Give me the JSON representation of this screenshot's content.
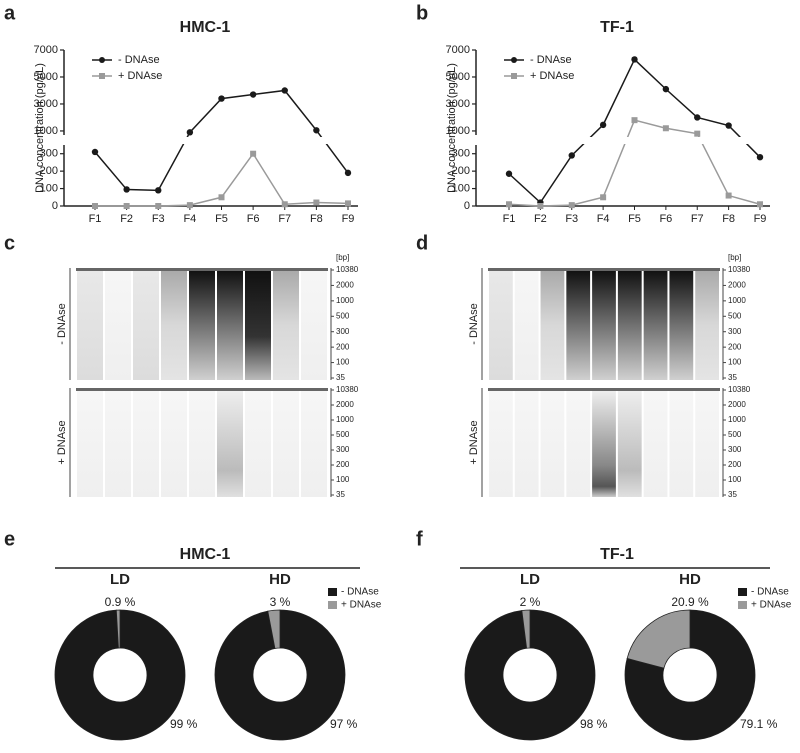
{
  "figure": {
    "panels": [
      "a",
      "b",
      "c",
      "d",
      "e",
      "f"
    ],
    "groups": [
      {
        "title": "HMC-1"
      },
      {
        "title": "TF-1"
      }
    ]
  },
  "gels": [
    {
      "unit": "[bp]",
      "rows": [
        "- DNAse",
        "+ DNAse"
      ],
      "sizes": [
        10380,
        2000,
        1000,
        500,
        300,
        200,
        100,
        35
      ]
    },
    {
      "unit": "[bp]",
      "rows": [
        "- DNAse",
        "+ DNAse"
      ],
      "sizes": [
        10380,
        2000,
        1000,
        500,
        300,
        200,
        100,
        35
      ]
    }
  ],
  "chart_data": [
    {
      "type": "line",
      "title": "HMC-1",
      "y_label": "DNA concentration (pg/μL)",
      "categories": [
        "F1",
        "F2",
        "F3",
        "F4",
        "F5",
        "F6",
        "F7",
        "F8",
        "F9"
      ],
      "series": [
        {
          "name": "- DNAse",
          "color": "#1a1a1a",
          "marker": "circle",
          "values": [
            310,
            95,
            90,
            900,
            3400,
            3700,
            4000,
            1050,
            190
          ]
        },
        {
          "name": "+ DNAse",
          "color": "#9a9a9a",
          "marker": "square",
          "values": [
            0,
            0,
            0,
            5,
            50,
            300,
            10,
            20,
            15
          ]
        }
      ],
      "segments": [
        {
          "ylim": [
            0,
            350
          ],
          "yticks": [
            0,
            100,
            200,
            300
          ]
        },
        {
          "ylim": [
            700,
            7000
          ],
          "yticks": [
            1000,
            3000,
            5000,
            7000
          ]
        }
      ],
      "legend": "upper left"
    },
    {
      "type": "line",
      "title": "TF-1",
      "y_label": "DNA concentration (pg/μL)",
      "categories": [
        "F1",
        "F2",
        "F3",
        "F4",
        "F5",
        "F6",
        "F7",
        "F8",
        "F9"
      ],
      "series": [
        {
          "name": "- DNAse",
          "color": "#1a1a1a",
          "marker": "circle",
          "values": [
            185,
            20,
            290,
            1450,
            6300,
            4100,
            2000,
            1400,
            280
          ]
        },
        {
          "name": "+ DNAse",
          "color": "#9a9a9a",
          "marker": "square",
          "values": [
            10,
            0,
            5,
            50,
            1800,
            1200,
            800,
            60,
            10
          ]
        }
      ],
      "segments": [
        {
          "ylim": [
            0,
            350
          ],
          "yticks": [
            0,
            100,
            200,
            300
          ]
        },
        {
          "ylim": [
            700,
            7000
          ],
          "yticks": [
            1000,
            3000,
            5000,
            7000
          ]
        }
      ],
      "legend": "upper left"
    },
    {
      "type": "pie",
      "title": "LD",
      "categories": [
        "- DNAse",
        "+ DNAse"
      ],
      "colors": [
        "#1a1a1a",
        "#9a9a9a"
      ],
      "values": [
        99,
        0.9
      ],
      "value_labels": [
        "99 %",
        "0.9 %"
      ],
      "legend": false
    },
    {
      "type": "pie",
      "title": "HD",
      "categories": [
        "- DNAse",
        "+ DNAse"
      ],
      "colors": [
        "#1a1a1a",
        "#9a9a9a"
      ],
      "values": [
        97,
        3
      ],
      "value_labels": [
        "97 %",
        "3 %"
      ],
      "legend": true
    },
    {
      "type": "pie",
      "title": "LD",
      "categories": [
        "- DNAse",
        "+ DNAse"
      ],
      "colors": [
        "#1a1a1a",
        "#9a9a9a"
      ],
      "values": [
        98,
        2
      ],
      "value_labels": [
        "98 %",
        "2 %"
      ],
      "legend": false
    },
    {
      "type": "pie",
      "title": "HD",
      "categories": [
        "- DNAse",
        "+ DNAse"
      ],
      "colors": [
        "#1a1a1a",
        "#9a9a9a"
      ],
      "values": [
        79.1,
        20.9
      ],
      "value_labels": [
        "79.1 %",
        "20.9 %"
      ],
      "legend": true
    }
  ]
}
